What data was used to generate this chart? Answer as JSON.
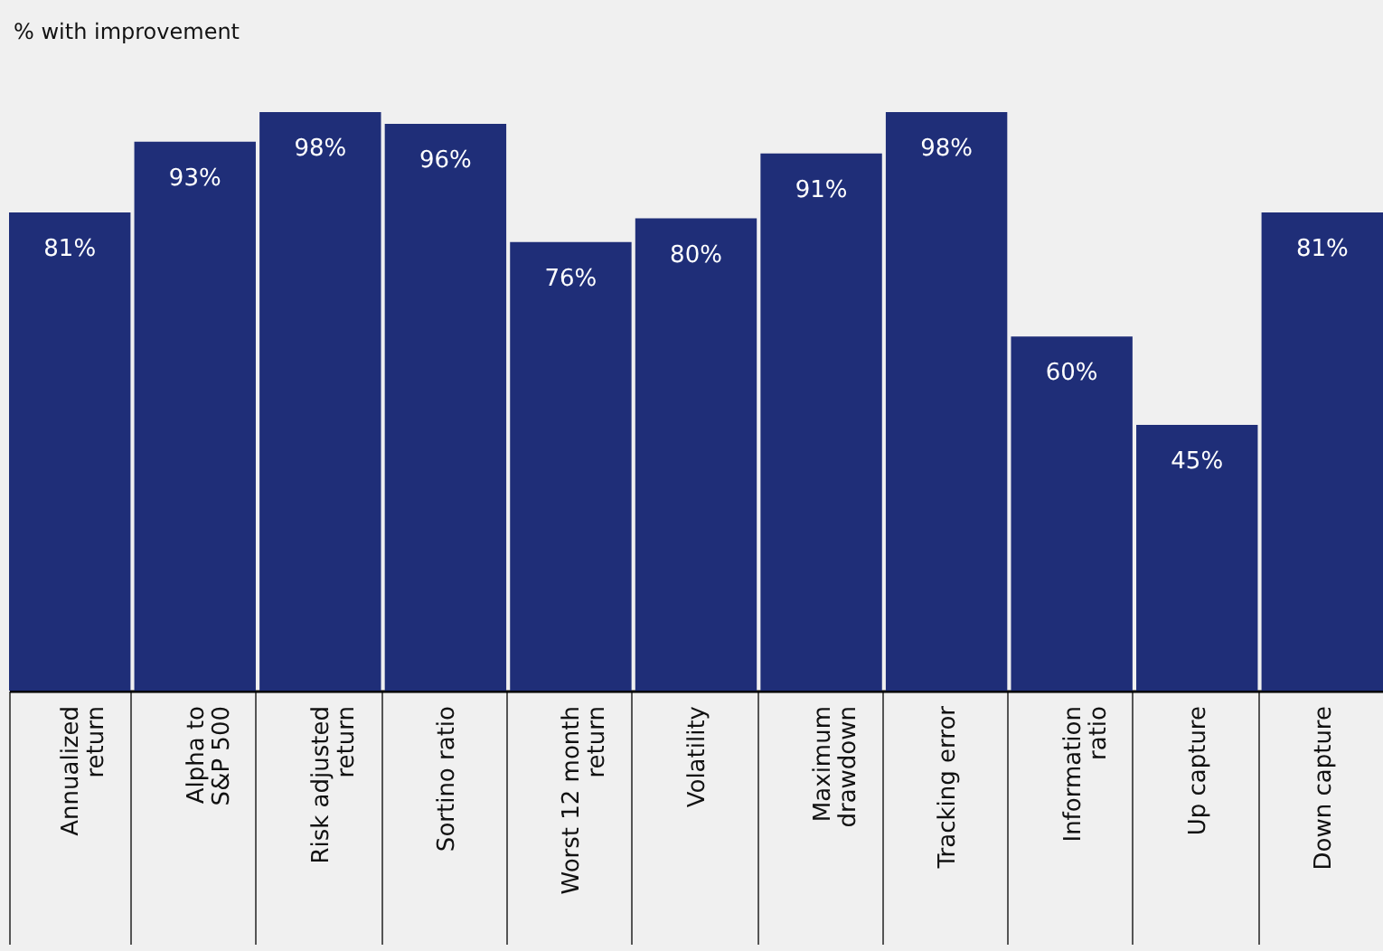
{
  "chart_data": {
    "type": "bar",
    "ylabel": "% with improvement",
    "categories": [
      "Annualized\nreturn",
      "Alpha to\nS&P 500",
      "Risk adjusted\nreturn",
      "Sortino ratio",
      "Worst 12 month\nreturn",
      "Volatility",
      "Maximum\ndrawdown",
      "Tracking error",
      "Information\nratio",
      "Up capture",
      "Down capture"
    ],
    "series": [
      {
        "color": "#1f2e78",
        "values": [
          81,
          93,
          98,
          96,
          76,
          80,
          91,
          98,
          60,
          45,
          81
        ],
        "value_labels": [
          "81%",
          "93%",
          "98%",
          "96%",
          "76%",
          "80%",
          "91%",
          "98%",
          "60%",
          "45%",
          "81%"
        ]
      }
    ],
    "grid": false
  }
}
